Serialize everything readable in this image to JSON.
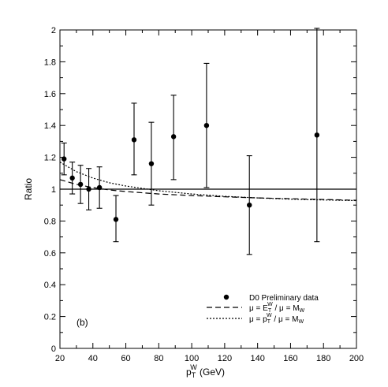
{
  "chart_data": {
    "type": "scatter",
    "xlabel": {
      "main": "p",
      "sub": "T",
      "sup": "W",
      "unit": " (GeV)"
    },
    "ylabel": "Ratio",
    "xlim": [
      20,
      200
    ],
    "ylim": [
      0,
      2
    ],
    "x_ticks": [
      20,
      40,
      60,
      80,
      100,
      120,
      140,
      160,
      180,
      200
    ],
    "y_ticks": [
      0,
      0.2,
      0.4,
      0.6,
      0.8,
      1,
      1.2,
      1.4,
      1.6,
      1.8,
      2
    ],
    "x_tick_labels": [
      "20",
      "40",
      "60",
      "80",
      "100",
      "120",
      "140",
      "160",
      "180",
      "200"
    ],
    "y_tick_labels": [
      "0",
      "0.2",
      "0.4",
      "0.6",
      "0.8",
      "1",
      "1.2",
      "1.4",
      "1.6",
      "1.8",
      "2"
    ],
    "panel_label": "(b)",
    "reference_line": 1.0,
    "series": [
      {
        "name": "D0 Preliminary data",
        "kind": "points",
        "x": [
          22.5,
          27.5,
          32.5,
          37.5,
          44,
          54,
          65,
          75.5,
          89,
          109,
          135,
          176
        ],
        "y": [
          1.19,
          1.07,
          1.03,
          1.0,
          1.01,
          0.81,
          1.31,
          1.16,
          1.33,
          1.4,
          0.9,
          1.34
        ],
        "err_low": [
          0.1,
          0.1,
          0.12,
          0.13,
          0.13,
          0.14,
          0.22,
          0.26,
          0.27,
          0.39,
          0.31,
          0.67
        ],
        "err_high": [
          0.1,
          0.1,
          0.12,
          0.13,
          0.13,
          0.15,
          0.23,
          0.26,
          0.26,
          0.39,
          0.31,
          0.67
        ]
      },
      {
        "name": "μ = E_T^W / μ = M_W",
        "kind": "curve",
        "style": "dashed",
        "x": [
          20,
          30,
          40,
          50,
          60,
          80,
          100,
          120,
          140,
          160,
          180,
          200
        ],
        "y": [
          1.06,
          1.03,
          1.01,
          0.995,
          0.985,
          0.97,
          0.96,
          0.952,
          0.945,
          0.94,
          0.935,
          0.93
        ]
      },
      {
        "name": "μ = p_T^W / μ = M_W",
        "kind": "curve",
        "style": "dotted",
        "x": [
          20,
          30,
          40,
          50,
          60,
          80,
          100,
          120,
          140,
          160,
          180,
          200
        ],
        "y": [
          1.17,
          1.11,
          1.07,
          1.04,
          1.02,
          0.99,
          0.97,
          0.955,
          0.945,
          0.937,
          0.932,
          0.928
        ]
      }
    ],
    "legend": {
      "placement": "bottom-right",
      "entries": [
        {
          "text": "D0 Preliminary data"
        },
        {
          "base": "μ = E",
          "sub": "T",
          "sup": "W",
          "tail": " / μ = M",
          "tail_sub": "W"
        },
        {
          "base": "μ = p",
          "sub": "T",
          "sup": "W",
          "tail": " / μ = M",
          "tail_sub": "W"
        }
      ]
    }
  }
}
